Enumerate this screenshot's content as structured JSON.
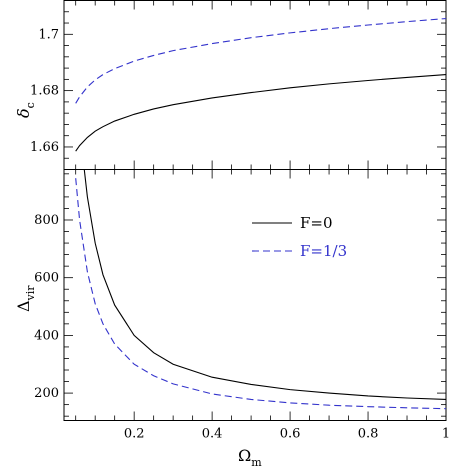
{
  "chart_data": [
    {
      "type": "line",
      "panel": "top",
      "ylabel": "δc",
      "ylabel_main": "δ",
      "ylabel_sub": "c",
      "xlim": [
        0.02,
        1.0
      ],
      "ylim": [
        1.652,
        1.712
      ],
      "yticks": [
        1.66,
        1.68,
        1.7
      ],
      "ytick_labels": [
        "1.66",
        "1.68",
        "1.7"
      ],
      "series": [
        {
          "name": "F=0",
          "color": "#000000",
          "dash": "solid",
          "x": [
            0.05,
            0.06,
            0.08,
            0.1,
            0.12,
            0.15,
            0.2,
            0.25,
            0.3,
            0.4,
            0.5,
            0.6,
            0.7,
            0.8,
            0.9,
            1.0
          ],
          "y": [
            1.6585,
            1.6605,
            1.6634,
            1.6656,
            1.6672,
            1.6692,
            1.6716,
            1.6735,
            1.675,
            1.6774,
            1.6793,
            1.681,
            1.6824,
            1.6836,
            1.6847,
            1.6857
          ]
        },
        {
          "name": "F=1/3",
          "color": "#3333cc",
          "dash": "dashed",
          "x": [
            0.05,
            0.06,
            0.08,
            0.1,
            0.12,
            0.15,
            0.2,
            0.25,
            0.3,
            0.4,
            0.5,
            0.6,
            0.7,
            0.8,
            0.9,
            1.0
          ],
          "y": [
            1.6755,
            1.6778,
            1.6813,
            1.6838,
            1.6857,
            1.6878,
            1.6905,
            1.6925,
            1.6942,
            1.6967,
            1.6988,
            1.7005,
            1.702,
            1.7033,
            1.7045,
            1.7056
          ]
        }
      ]
    },
    {
      "type": "line",
      "panel": "bottom",
      "xlabel": "Ωm",
      "xlabel_main": "Ω",
      "xlabel_sub": "m",
      "ylabel": "Δvir",
      "ylabel_main": "Δ",
      "ylabel_sub": "vir",
      "xlim": [
        0.02,
        1.0
      ],
      "ylim": [
        105,
        975
      ],
      "xticks": [
        0.2,
        0.4,
        0.6,
        0.8,
        1.0
      ],
      "xtick_labels": [
        "0.2",
        "0.4",
        "0.6",
        "0.8",
        "1"
      ],
      "yticks": [
        200,
        400,
        600,
        800
      ],
      "ytick_labels": [
        "200",
        "400",
        "600",
        "800"
      ],
      "series": [
        {
          "name": "F=0",
          "color": "#000000",
          "dash": "solid",
          "x": [
            0.072,
            0.08,
            0.1,
            0.12,
            0.15,
            0.2,
            0.25,
            0.3,
            0.4,
            0.5,
            0.6,
            0.7,
            0.8,
            0.9,
            1.0
          ],
          "y": [
            975,
            880,
            720,
            610,
            505,
            400,
            340,
            300,
            255,
            230,
            212,
            200,
            190,
            183,
            178
          ]
        },
        {
          "name": "F=1/3",
          "color": "#3333cc",
          "dash": "dashed",
          "x": [
            0.05,
            0.06,
            0.08,
            0.1,
            0.12,
            0.15,
            0.2,
            0.25,
            0.3,
            0.4,
            0.5,
            0.6,
            0.7,
            0.8,
            0.9,
            1.0
          ],
          "y": [
            945,
            800,
            620,
            510,
            440,
            370,
            300,
            260,
            232,
            197,
            178,
            166,
            158,
            153,
            149,
            146
          ]
        }
      ]
    }
  ],
  "legend": {
    "position": "right",
    "items": [
      {
        "label": "F=0",
        "color": "#000000",
        "dash": "solid"
      },
      {
        "label": "F=1/3",
        "color": "#3333cc",
        "dash": "dashed"
      }
    ]
  }
}
